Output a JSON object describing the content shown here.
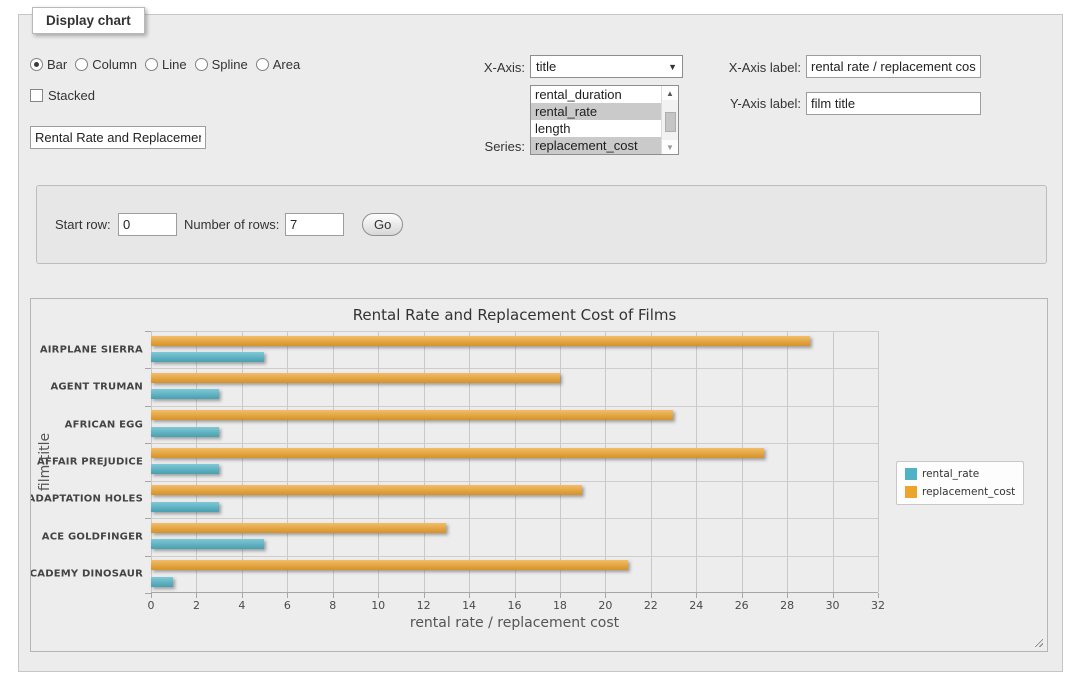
{
  "window": {
    "legend": "Display chart"
  },
  "controls": {
    "chart_types": [
      {
        "label": "Bar",
        "selected": true
      },
      {
        "label": "Column",
        "selected": false
      },
      {
        "label": "Line",
        "selected": false
      },
      {
        "label": "Spline",
        "selected": false
      },
      {
        "label": "Area",
        "selected": false
      }
    ],
    "stacked": {
      "label": "Stacked",
      "checked": false
    },
    "title_input": {
      "value": "Rental Rate and Replacement Cost of Films"
    },
    "x_axis": {
      "label": "X-Axis:",
      "value": "title"
    },
    "series_picker": {
      "label": "Series:",
      "options": [
        {
          "label": "rental_duration",
          "selected": false
        },
        {
          "label": "rental_rate",
          "selected": true
        },
        {
          "label": "length",
          "selected": false
        },
        {
          "label": "replacement_cost",
          "selected": true
        }
      ]
    },
    "x_axis_label": {
      "label": "X-Axis label:",
      "value": "rental rate / replacement cost"
    },
    "y_axis_label": {
      "label": "Y-Axis label:",
      "value": "film title"
    }
  },
  "pagination": {
    "start_row_label": "Start row:",
    "start_row_value": "0",
    "num_rows_label": "Number of rows:",
    "num_rows_value": "7",
    "go_label": "Go"
  },
  "chart_data": {
    "type": "bar",
    "orientation": "horizontal",
    "title": "Rental Rate and Replacement Cost of Films",
    "xlabel": "rental rate / replacement cost",
    "ylabel": "film title",
    "categories": [
      "AIRPLANE SIERRA",
      "AGENT TRUMAN",
      "AFRICAN EGG",
      "AFFAIR PREJUDICE",
      "ADAPTATION HOLES",
      "ACE GOLDFINGER",
      "ACADEMY DINOSAUR"
    ],
    "series": [
      {
        "name": "rental_rate",
        "values": [
          4.99,
          2.99,
          2.99,
          2.99,
          2.99,
          4.99,
          0.99
        ]
      },
      {
        "name": "replacement_cost",
        "values": [
          28.99,
          17.99,
          22.99,
          26.99,
          18.99,
          12.99,
          20.99
        ]
      }
    ],
    "display_order": [
      "replacement_cost",
      "rental_rate"
    ],
    "colors": {
      "rental_rate": "#4FB2C5",
      "replacement_cost": "#EDA32C"
    },
    "xlim": [
      0,
      32
    ],
    "xticks": [
      0,
      2,
      4,
      6,
      8,
      10,
      12,
      14,
      16,
      18,
      20,
      22,
      24,
      26,
      28,
      30,
      32
    ],
    "grid": true,
    "legend_position": "right"
  }
}
